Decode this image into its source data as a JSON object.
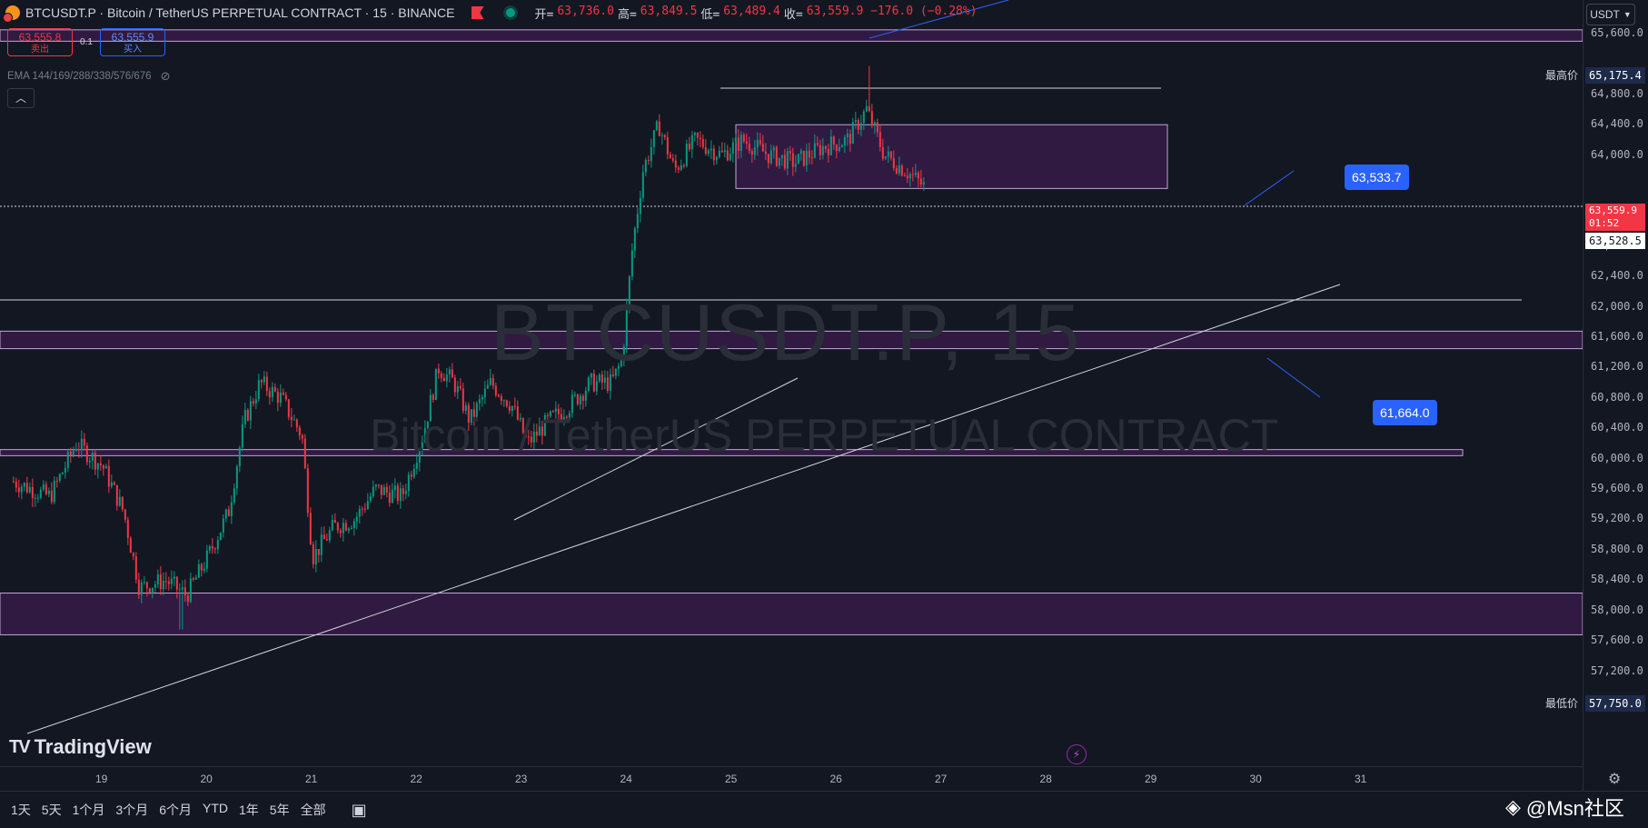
{
  "header": {
    "title": "BTCUSDT.P · Bitcoin / TetherUS PERPETUAL CONTRACT · 15 · BINANCE",
    "ohlc": [
      {
        "label": "开=",
        "value": "63,736.0"
      },
      {
        "label": "高=",
        "value": "63,849.5"
      },
      {
        "label": "低=",
        "value": "63,489.4"
      },
      {
        "label": "收=",
        "value": "63,559.9 −176.0 (−0.28%)"
      }
    ]
  },
  "trade": {
    "sell_price": "63,555.8",
    "sell_label": "卖出",
    "spread": "0.1",
    "buy_price": "63,555.9",
    "buy_label": "买入"
  },
  "indicator": {
    "ema": "EMA 144/169/288/338/576/676"
  },
  "watermark": {
    "symbol": "BTCUSDT.P, 15",
    "name": "Bitcoin / TetherUS PERPETUAL CONTRACT"
  },
  "price_axis": {
    "currency": "USDT",
    "ticks": [
      "65,600.0",
      "64,800.0",
      "64,400.0",
      "64,000.0",
      "62,800.0",
      "62,400.0",
      "62,000.0",
      "61,600.0",
      "61,200.0",
      "60,800.0",
      "60,400.0",
      "60,000.0",
      "59,600.0",
      "59,200.0",
      "58,800.0",
      "58,400.0",
      "58,000.0",
      "57,600.0",
      "57,200.0"
    ],
    "high_label": "最高价",
    "high_value": "65,175.4",
    "low_label": "最低价",
    "low_value": "57,750.0",
    "last_price": "63,559.9",
    "countdown": "01:52",
    "crosshair_price": "63,528.5"
  },
  "time_axis": {
    "ticks": [
      "19",
      "20",
      "21",
      "22",
      "23",
      "24",
      "25",
      "26",
      "27",
      "28",
      "29",
      "30",
      "31"
    ]
  },
  "callouts": {
    "upper": "63,533.7",
    "lower": "61,664.0"
  },
  "bottom": {
    "ranges": [
      "1天",
      "5天",
      "1个月",
      "3个月",
      "6个月",
      "YTD",
      "1年",
      "5年",
      "全部"
    ],
    "logo": "TradingView",
    "watermark": "@Msn社区"
  },
  "colors": {
    "up": "#089981",
    "down": "#f23645",
    "zone": "#9c27b0",
    "accent": "#2962ff"
  },
  "chart_data": {
    "type": "candlestick",
    "symbol": "BTCUSDT.P",
    "interval": "15",
    "exchange": "BINANCE",
    "ylim": [
      57100,
      65800
    ],
    "x_ticks": [
      "19",
      "20",
      "21",
      "22",
      "23",
      "24",
      "25",
      "26",
      "27",
      "28",
      "29",
      "30",
      "31"
    ],
    "close_path": [
      {
        "day": 18.15,
        "price": 59700
      },
      {
        "day": 18.5,
        "price": 59500
      },
      {
        "day": 18.75,
        "price": 60200
      },
      {
        "day": 19.0,
        "price": 59900
      },
      {
        "day": 19.2,
        "price": 59300
      },
      {
        "day": 19.35,
        "price": 58300
      },
      {
        "day": 19.6,
        "price": 58400
      },
      {
        "day": 19.8,
        "price": 58200
      },
      {
        "day": 20.0,
        "price": 58700
      },
      {
        "day": 20.2,
        "price": 59300
      },
      {
        "day": 20.35,
        "price": 60500
      },
      {
        "day": 20.5,
        "price": 61000
      },
      {
        "day": 20.7,
        "price": 60800
      },
      {
        "day": 20.9,
        "price": 60300
      },
      {
        "day": 21.0,
        "price": 58700
      },
      {
        "day": 21.2,
        "price": 59100
      },
      {
        "day": 21.4,
        "price": 59200
      },
      {
        "day": 21.6,
        "price": 59600
      },
      {
        "day": 21.85,
        "price": 59500
      },
      {
        "day": 22.05,
        "price": 60300
      },
      {
        "day": 22.2,
        "price": 61200
      },
      {
        "day": 22.35,
        "price": 61000
      },
      {
        "day": 22.5,
        "price": 60500
      },
      {
        "day": 22.7,
        "price": 61000
      },
      {
        "day": 22.9,
        "price": 60700
      },
      {
        "day": 23.05,
        "price": 60200
      },
      {
        "day": 23.25,
        "price": 60500
      },
      {
        "day": 23.45,
        "price": 60700
      },
      {
        "day": 23.65,
        "price": 61000
      },
      {
        "day": 23.85,
        "price": 61000
      },
      {
        "day": 23.95,
        "price": 61300
      },
      {
        "day": 24.05,
        "price": 62800
      },
      {
        "day": 24.15,
        "price": 63800
      },
      {
        "day": 24.3,
        "price": 64400
      },
      {
        "day": 24.45,
        "price": 63800
      },
      {
        "day": 24.65,
        "price": 64200
      },
      {
        "day": 24.9,
        "price": 64000
      },
      {
        "day": 25.1,
        "price": 64200
      },
      {
        "day": 25.35,
        "price": 64000
      },
      {
        "day": 25.6,
        "price": 63900
      },
      {
        "day": 25.85,
        "price": 64100
      },
      {
        "day": 26.1,
        "price": 64200
      },
      {
        "day": 26.28,
        "price": 64600
      },
      {
        "day": 26.45,
        "price": 64000
      },
      {
        "day": 26.65,
        "price": 63800
      },
      {
        "day": 26.85,
        "price": 63560
      }
    ],
    "high": 65175.4,
    "low": 57750.0,
    "last": 63559.9,
    "zones": [
      {
        "from": 65500,
        "to": 65650
      },
      {
        "from": 63560,
        "to": 64400
      },
      {
        "from": 61450,
        "to": 61680
      },
      {
        "from": 60040,
        "to": 60120
      },
      {
        "from": 57680,
        "to": 58230
      }
    ],
    "horizontal_lines": [
      63555,
      62440,
      64940
    ]
  }
}
